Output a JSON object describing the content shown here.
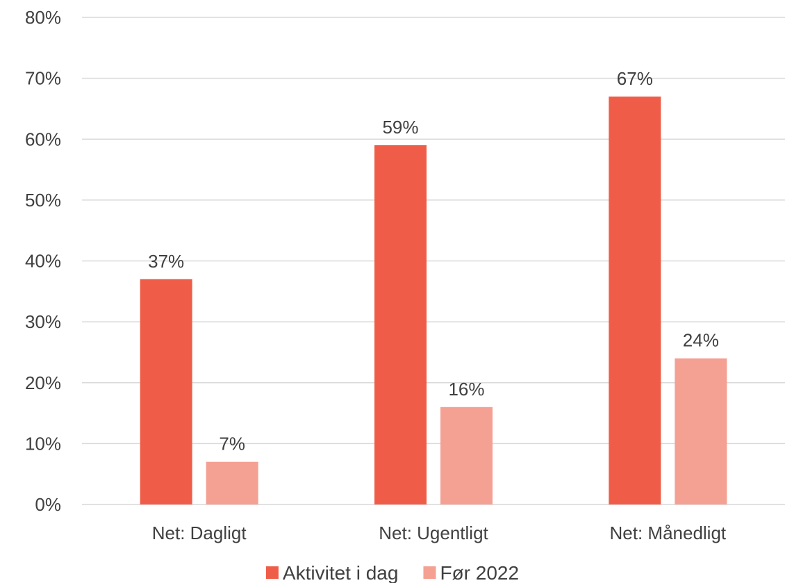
{
  "chart_data": {
    "type": "bar",
    "categories": [
      "Net: Dagligt",
      "Net: Ugentligt",
      "Net: Månedligt"
    ],
    "series": [
      {
        "name": "Aktivitet i dag",
        "values": [
          37,
          59,
          67
        ],
        "color": "#ef5d48",
        "value_labels": [
          "37%",
          "59%",
          "67%"
        ]
      },
      {
        "name": "Før 2022",
        "values": [
          7,
          16,
          24
        ],
        "color": "#f4a093",
        "value_labels": [
          "7%",
          "16%",
          "24%"
        ]
      }
    ],
    "ylim": [
      0,
      80
    ],
    "yticks": [
      0,
      10,
      20,
      30,
      40,
      50,
      60,
      70,
      80
    ],
    "ytick_labels": [
      "0%",
      "10%",
      "20%",
      "30%",
      "40%",
      "50%",
      "60%",
      "70%",
      "80%"
    ],
    "title": "",
    "xlabel": "",
    "ylabel": "",
    "grid": true,
    "legend_position": "bottom-center"
  }
}
